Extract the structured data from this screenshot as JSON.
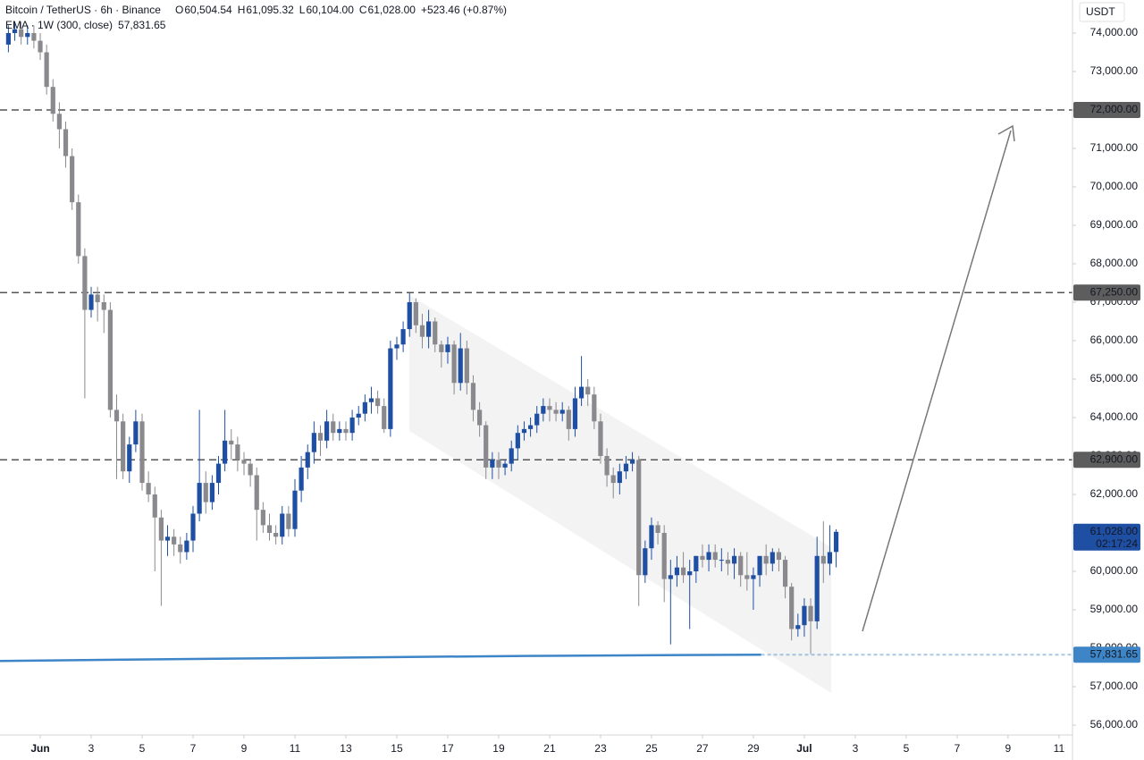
{
  "chart_data": {
    "type": "candlestick",
    "header": {
      "symbol": "Bitcoin / TetherUS · 6h · Binance",
      "items": [
        {
          "key": "O",
          "value": "60,504.54"
        },
        {
          "key": "H",
          "value": "61,095.32"
        },
        {
          "key": "L",
          "value": "60,104.00"
        },
        {
          "key": "C",
          "value": "61,028.00"
        }
      ],
      "change": "+523.46 (+0.87%)"
    },
    "currency": "USDT",
    "up_color": "#1e4fa3",
    "down_color": "#8a8a8e",
    "xlim": [
      -0.58,
      41.53
    ],
    "ylim": [
      55744,
      74860
    ],
    "xticks": [
      {
        "value": 1,
        "label": "Jun"
      },
      3,
      5,
      7,
      9,
      11,
      13,
      15,
      17,
      19,
      21,
      23,
      25,
      27,
      29,
      {
        "value": 31,
        "label": "Jul"
      },
      {
        "value": 33,
        "label": "3"
      },
      {
        "value": 35,
        "label": "5"
      },
      {
        "value": 37,
        "label": "7"
      },
      {
        "value": 39,
        "label": "9"
      },
      {
        "value": 41,
        "label": "11"
      }
    ],
    "yticks": [
      {
        "value": 56000,
        "label": "56,000.00"
      },
      {
        "value": 57000,
        "label": "57,000.00"
      },
      {
        "value": 58000,
        "label": "58,000.00"
      },
      {
        "value": 59000,
        "label": "59,000.00"
      },
      {
        "value": 60000,
        "label": "60,000.00"
      },
      {
        "value": 61000,
        "label": "61,000.00"
      },
      {
        "value": 62000,
        "label": "62,000.00"
      },
      {
        "value": 63000,
        "label": "63,000.00"
      },
      {
        "value": 64000,
        "label": "64,000.00"
      },
      {
        "value": 65000,
        "label": "65,000.00"
      },
      {
        "value": 66000,
        "label": "66,000.00"
      },
      {
        "value": 67000,
        "label": "67,000.00"
      },
      {
        "value": 68000,
        "label": "68,000.00"
      },
      {
        "value": 69000,
        "label": "69,000.00"
      },
      {
        "value": 70000,
        "label": "70,000.00"
      },
      {
        "value": 71000,
        "label": "71,000.00"
      },
      {
        "value": 72000,
        "label": "72,000.00"
      },
      {
        "value": 73000,
        "label": "73,000.00"
      },
      {
        "value": 74000,
        "label": "74,000.00"
      }
    ],
    "x": [
      -0.25,
      0,
      0.25,
      0.5,
      0.75,
      1,
      1.25,
      1.5,
      1.75,
      2,
      2.25,
      2.5,
      2.75,
      3,
      3.25,
      3.5,
      3.75,
      4,
      4.25,
      4.5,
      4.75,
      5,
      5.25,
      5.5,
      5.75,
      6,
      6.25,
      6.5,
      6.75,
      7,
      7.25,
      7.5,
      7.75,
      8,
      8.25,
      8.5,
      8.75,
      9,
      9.25,
      9.5,
      9.75,
      10,
      10.25,
      10.5,
      10.75,
      11,
      11.25,
      11.5,
      11.75,
      12,
      12.25,
      12.5,
      12.75,
      13,
      13.25,
      13.5,
      13.75,
      14,
      14.25,
      14.5,
      14.75,
      15,
      15.25,
      15.5,
      15.75,
      16,
      16.25,
      16.5,
      16.75,
      17,
      17.25,
      17.5,
      17.75,
      18,
      18.25,
      18.5,
      18.75,
      19,
      19.25,
      19.5,
      19.75,
      20,
      20.25,
      20.5,
      20.75,
      21,
      21.25,
      21.5,
      21.75,
      22,
      22.25,
      22.5,
      22.75,
      23,
      23.25,
      23.5,
      23.75,
      24,
      24.25,
      24.5,
      24.75,
      25,
      25.25,
      25.5,
      25.75,
      26,
      26.25,
      26.5,
      26.75,
      27,
      27.25,
      27.5,
      27.75,
      28,
      28.25,
      28.5,
      28.75,
      29,
      29.25,
      29.5,
      29.75,
      30,
      30.25,
      30.5,
      30.75,
      31,
      31.25,
      31.5,
      31.75,
      32,
      32.25
    ],
    "open": [
      73700,
      74000,
      74100,
      73900,
      74000,
      73800,
      73500,
      72600,
      71900,
      71500,
      70800,
      69600,
      68200,
      66800,
      67200,
      67000,
      66800,
      64200,
      63900,
      62600,
      63300,
      63900,
      62300,
      62000,
      61400,
      60800,
      60900,
      60700,
      60500,
      60800,
      61500,
      62300,
      61800,
      62300,
      62800,
      63400,
      63300,
      62900,
      62800,
      62500,
      61600,
      61200,
      61000,
      60900,
      61500,
      61100,
      62100,
      62700,
      63100,
      63600,
      63400,
      63900,
      63600,
      63700,
      63600,
      64000,
      64100,
      64400,
      64500,
      64300,
      63700,
      65800,
      65900,
      66300,
      67000,
      66400,
      66100,
      66500,
      65900,
      65700,
      65900,
      64900,
      65800,
      64900,
      64200,
      63800,
      62700,
      62900,
      62700,
      62800,
      63200,
      63600,
      63700,
      63800,
      64100,
      64300,
      64200,
      64100,
      64200,
      63700,
      64500,
      64800,
      64600,
      63900,
      63000,
      62500,
      62300,
      62600,
      62800,
      62900,
      59900,
      60600,
      61200,
      61000,
      59800,
      59900,
      60100,
      59900,
      60000,
      60400,
      60300,
      60500,
      60300,
      60300,
      60200,
      60400,
      59900,
      59800,
      59900,
      60400,
      60200,
      60500,
      60300,
      59600,
      58500,
      58600,
      59100,
      58700,
      60400,
      60200,
      60504.54
    ],
    "high": [
      74200,
      74300,
      74300,
      74200,
      74200,
      74000,
      73700,
      72800,
      72200,
      71700,
      71000,
      69800,
      68400,
      67400,
      67400,
      67200,
      67000,
      64600,
      64100,
      63500,
      64200,
      64100,
      62600,
      62200,
      61600,
      61200,
      61100,
      60900,
      61000,
      61700,
      64200,
      62600,
      62500,
      63000,
      64200,
      63700,
      63500,
      63100,
      62900,
      62700,
      61800,
      61500,
      61200,
      61700,
      61700,
      62400,
      63000,
      63300,
      63900,
      63800,
      64200,
      64100,
      63900,
      63900,
      64200,
      64300,
      64600,
      64800,
      64700,
      64500,
      66000,
      66100,
      66500,
      67250,
      67100,
      66700,
      66800,
      66600,
      66000,
      66100,
      66000,
      66200,
      66000,
      65100,
      64400,
      63900,
      63100,
      63100,
      62900,
      63400,
      63800,
      63900,
      64000,
      64300,
      64500,
      64500,
      64400,
      64400,
      64300,
      64800,
      65600,
      65000,
      64800,
      64100,
      63200,
      62700,
      62800,
      63000,
      63100,
      63000,
      60800,
      61400,
      61300,
      61200,
      60300,
      60400,
      60500,
      60300,
      60400,
      60700,
      60700,
      60700,
      60600,
      60500,
      60600,
      60500,
      60500,
      60100,
      60300,
      60700,
      60600,
      60600,
      60400,
      59700,
      58900,
      59300,
      59300,
      60900,
      61300,
      61200,
      61095.32
    ],
    "low": [
      73500,
      73800,
      73700,
      73700,
      73600,
      73300,
      72400,
      71700,
      71000,
      70500,
      69400,
      68000,
      64500,
      66600,
      66500,
      66200,
      64000,
      62400,
      62400,
      62300,
      63100,
      62100,
      61800,
      60000,
      59100,
      60400,
      60400,
      60200,
      60300,
      60500,
      61300,
      61500,
      61600,
      62000,
      62600,
      62900,
      62600,
      62500,
      62200,
      60800,
      61000,
      60800,
      60700,
      60700,
      60900,
      60900,
      61800,
      62400,
      62800,
      63000,
      63200,
      63400,
      63400,
      63400,
      63400,
      63800,
      63900,
      64100,
      64100,
      63600,
      63500,
      65500,
      65700,
      66100,
      66200,
      65800,
      65800,
      65700,
      65300,
      65400,
      64600,
      64700,
      64600,
      63900,
      63500,
      62400,
      62400,
      62400,
      62500,
      62600,
      62900,
      63400,
      63500,
      63600,
      63900,
      63900,
      63900,
      63900,
      63400,
      63500,
      64300,
      64300,
      63700,
      62800,
      62200,
      61900,
      62000,
      62400,
      62600,
      59100,
      59700,
      60300,
      60700,
      59200,
      58100,
      59600,
      59700,
      58500,
      59700,
      60100,
      60000,
      60100,
      60000,
      59900,
      59800,
      59600,
      59500,
      59000,
      59600,
      59900,
      60000,
      60000,
      59300,
      58200,
      58300,
      58300,
      57850,
      58500,
      59700,
      59900,
      60104
    ],
    "close": [
      74000,
      74100,
      73900,
      74000,
      73800,
      73500,
      72600,
      71900,
      71500,
      70800,
      69600,
      68200,
      66800,
      67200,
      67000,
      66800,
      64200,
      63900,
      62600,
      63300,
      63900,
      62300,
      62000,
      61400,
      60800,
      60900,
      60700,
      60500,
      60800,
      61500,
      62300,
      61800,
      62300,
      62800,
      63400,
      63300,
      62900,
      62800,
      62500,
      61600,
      61200,
      61000,
      60900,
      61500,
      61100,
      62100,
      62700,
      63100,
      63600,
      63400,
      63900,
      63600,
      63700,
      63600,
      64000,
      64100,
      64400,
      64500,
      64300,
      63700,
      65800,
      65900,
      66300,
      67000,
      66400,
      66100,
      66500,
      65900,
      65700,
      65900,
      64900,
      65800,
      64900,
      64200,
      63800,
      62700,
      62900,
      62700,
      62800,
      63200,
      63600,
      63700,
      63800,
      64100,
      64300,
      64200,
      64100,
      64200,
      63700,
      64500,
      64800,
      64600,
      63900,
      63000,
      62500,
      62300,
      62600,
      62800,
      62900,
      59900,
      60600,
      61200,
      61000,
      59800,
      59900,
      60100,
      59900,
      60000,
      60400,
      60300,
      60500,
      60300,
      60300,
      60200,
      60400,
      59900,
      59800,
      59900,
      60400,
      60200,
      60500,
      60300,
      59600,
      58500,
      58600,
      59100,
      58700,
      60400,
      60200,
      60500,
      61028
    ],
    "last_price": {
      "label": "61,028.00",
      "countdown": "02:17:24",
      "color": "#1e4fa3"
    },
    "ema": {
      "name": "EMA · 1W (300, close)",
      "color": "#3d85c6",
      "x": [
        -0.58,
        10,
        20,
        29.3
      ],
      "values": [
        57670,
        57740,
        57800,
        57831.65
      ],
      "value_labels": [
        null,
        null,
        null,
        "57,831.65"
      ]
    },
    "levels": [
      {
        "value": 72000,
        "label": "72,000.00"
      },
      {
        "value": 67250,
        "label": "67,250.00"
      },
      {
        "value": 62900,
        "label": "62,900.00"
      }
    ],
    "level_color": "#555"
  }
}
